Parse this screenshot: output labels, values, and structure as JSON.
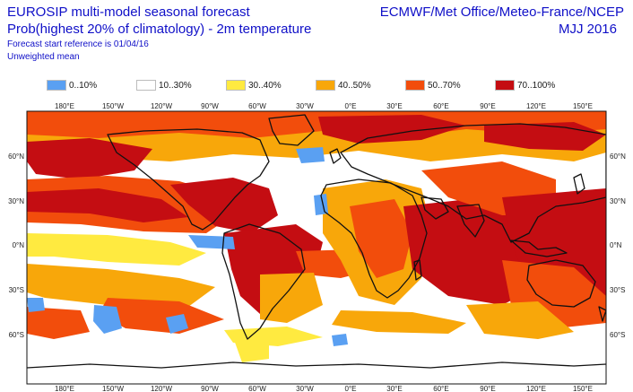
{
  "header": {
    "title_line1": "EUROSIP multi-model seasonal forecast",
    "title_line2": "Prob(highest 20% of climatology) - 2m temperature",
    "forecast_ref": "Forecast start reference is 01/04/16",
    "mean_type": "Unweighted mean",
    "centres": "ECMWF/Met Office/Meteo-France/NCEP",
    "period": "MJJ 2016"
  },
  "legend": [
    {
      "label": "0..10%",
      "color": "#5aa0f2"
    },
    {
      "label": "10..30%",
      "color": "#ffffff"
    },
    {
      "label": "30..40%",
      "color": "#ffea40"
    },
    {
      "label": "40..50%",
      "color": "#f8a70a"
    },
    {
      "label": "50..70%",
      "color": "#f24d0c"
    },
    {
      "label": "70..100%",
      "color": "#c40d12"
    }
  ],
  "map": {
    "lon_ticks": [
      "180°E",
      "150°W",
      "120°W",
      "90°W",
      "60°W",
      "30°W",
      "0°E",
      "30°E",
      "60°E",
      "90°E",
      "120°E",
      "150°E"
    ],
    "lat_ticks": [
      "60°N",
      "30°N",
      "0°N",
      "30°S",
      "60°S"
    ]
  }
}
